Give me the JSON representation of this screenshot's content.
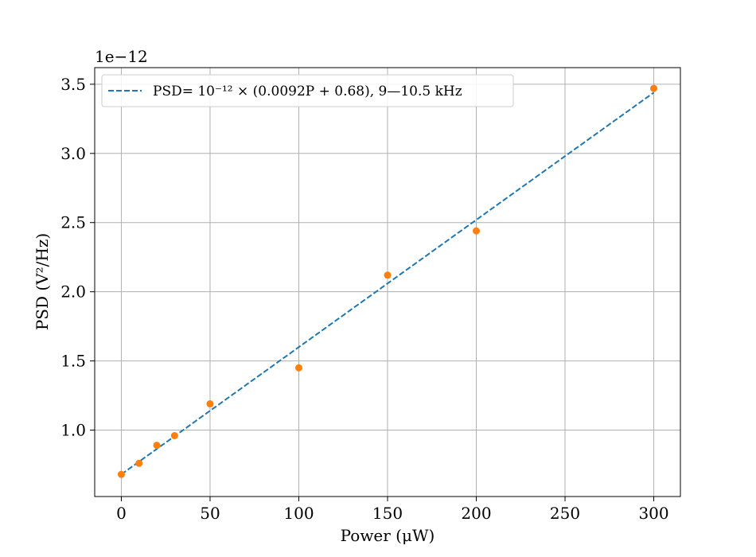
{
  "chart_data": {
    "type": "scatter",
    "xlabel": "Power (μW)",
    "ylabel": "PSD (V²/Hz)",
    "offset_text": "1e−12",
    "xlim": [
      -15,
      315
    ],
    "ylim": [
      0.52,
      3.62
    ],
    "xticks": [
      0,
      50,
      100,
      150,
      200,
      250,
      300
    ],
    "xtick_labels": [
      "0",
      "50",
      "100",
      "150",
      "200",
      "250",
      "300"
    ],
    "yticks": [
      1.0,
      1.5,
      2.0,
      2.5,
      3.0,
      3.5
    ],
    "ytick_labels": [
      "1.0",
      "1.5",
      "2.0",
      "2.5",
      "3.0",
      "3.5"
    ],
    "grid": true,
    "legend_position": "top-left",
    "series": [
      {
        "name": "PSD= 10⁻¹² × (0.0092P + 0.68), 9—10.5 kHz",
        "kind": "line",
        "style": "dashed",
        "color": "#1f77b4",
        "x": [
          0,
          300
        ],
        "y": [
          0.68,
          3.44
        ]
      },
      {
        "kind": "scatter",
        "color": "#ff7f0e",
        "x": [
          0,
          10,
          20,
          30,
          50,
          100,
          150,
          200,
          300
        ],
        "y": [
          0.68,
          0.76,
          0.89,
          0.96,
          1.19,
          1.45,
          2.12,
          2.44,
          3.47
        ]
      }
    ]
  }
}
